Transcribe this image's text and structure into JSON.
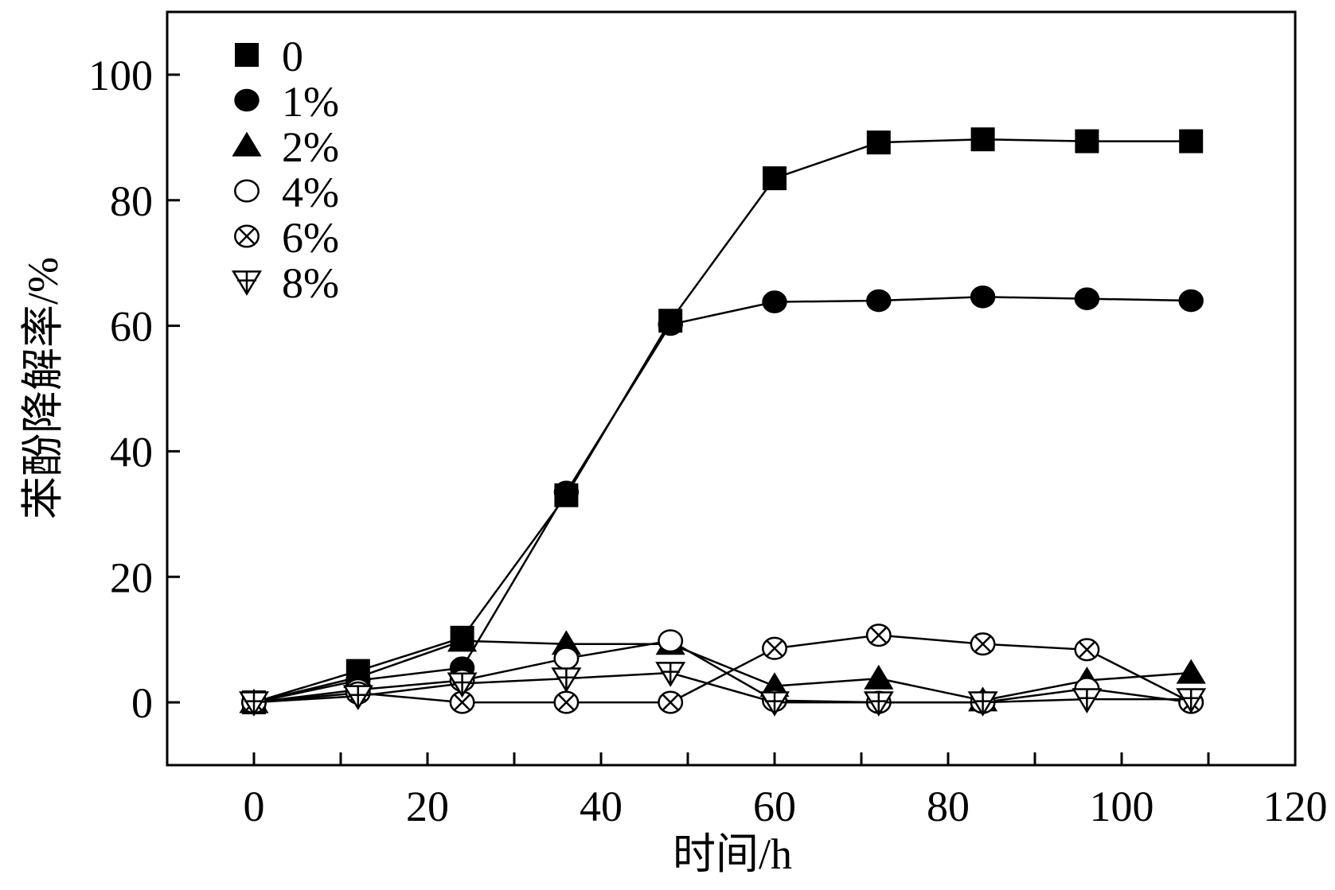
{
  "chart_data": {
    "type": "line",
    "title": "",
    "xlabel": "时间/h",
    "ylabel": "苯酚降解率/%",
    "xlim": [
      -10,
      120
    ],
    "ylim": [
      -10,
      110
    ],
    "xticks": [
      0,
      20,
      40,
      60,
      80,
      100,
      120
    ],
    "yticks": [
      0,
      20,
      40,
      60,
      80,
      100
    ],
    "grid": false,
    "legend_position": "top-left",
    "x": [
      0,
      12,
      24,
      36,
      48,
      60,
      72,
      84,
      96,
      108
    ],
    "series": [
      {
        "name": "0",
        "marker": "square-filled",
        "values": [
          0,
          5,
          10.3,
          33,
          60.8,
          83.5,
          89.2,
          89.7,
          89.4,
          89.4
        ]
      },
      {
        "name": "1%",
        "marker": "circle-filled",
        "values": [
          0,
          3.5,
          5.5,
          33.5,
          60.2,
          63.8,
          64,
          64.6,
          64.3,
          64
        ]
      },
      {
        "name": "2%",
        "marker": "triangle-filled",
        "values": [
          0,
          4,
          9.8,
          9.3,
          9.3,
          2.6,
          3.8,
          0.3,
          3.5,
          4.7
        ]
      },
      {
        "name": "4%",
        "marker": "circle-open",
        "values": [
          0,
          2,
          3.5,
          7,
          9.8,
          0.3,
          0,
          0,
          2.2,
          0
        ]
      },
      {
        "name": "6%",
        "marker": "circle-cross",
        "values": [
          0,
          1.5,
          0,
          0,
          0,
          8.6,
          10.7,
          9.3,
          8.4,
          0
        ]
      },
      {
        "name": "8%",
        "marker": "triangle-down-open",
        "values": [
          0,
          1,
          3,
          3.8,
          4.7,
          0,
          0,
          0,
          0.5,
          0.5
        ]
      }
    ]
  }
}
